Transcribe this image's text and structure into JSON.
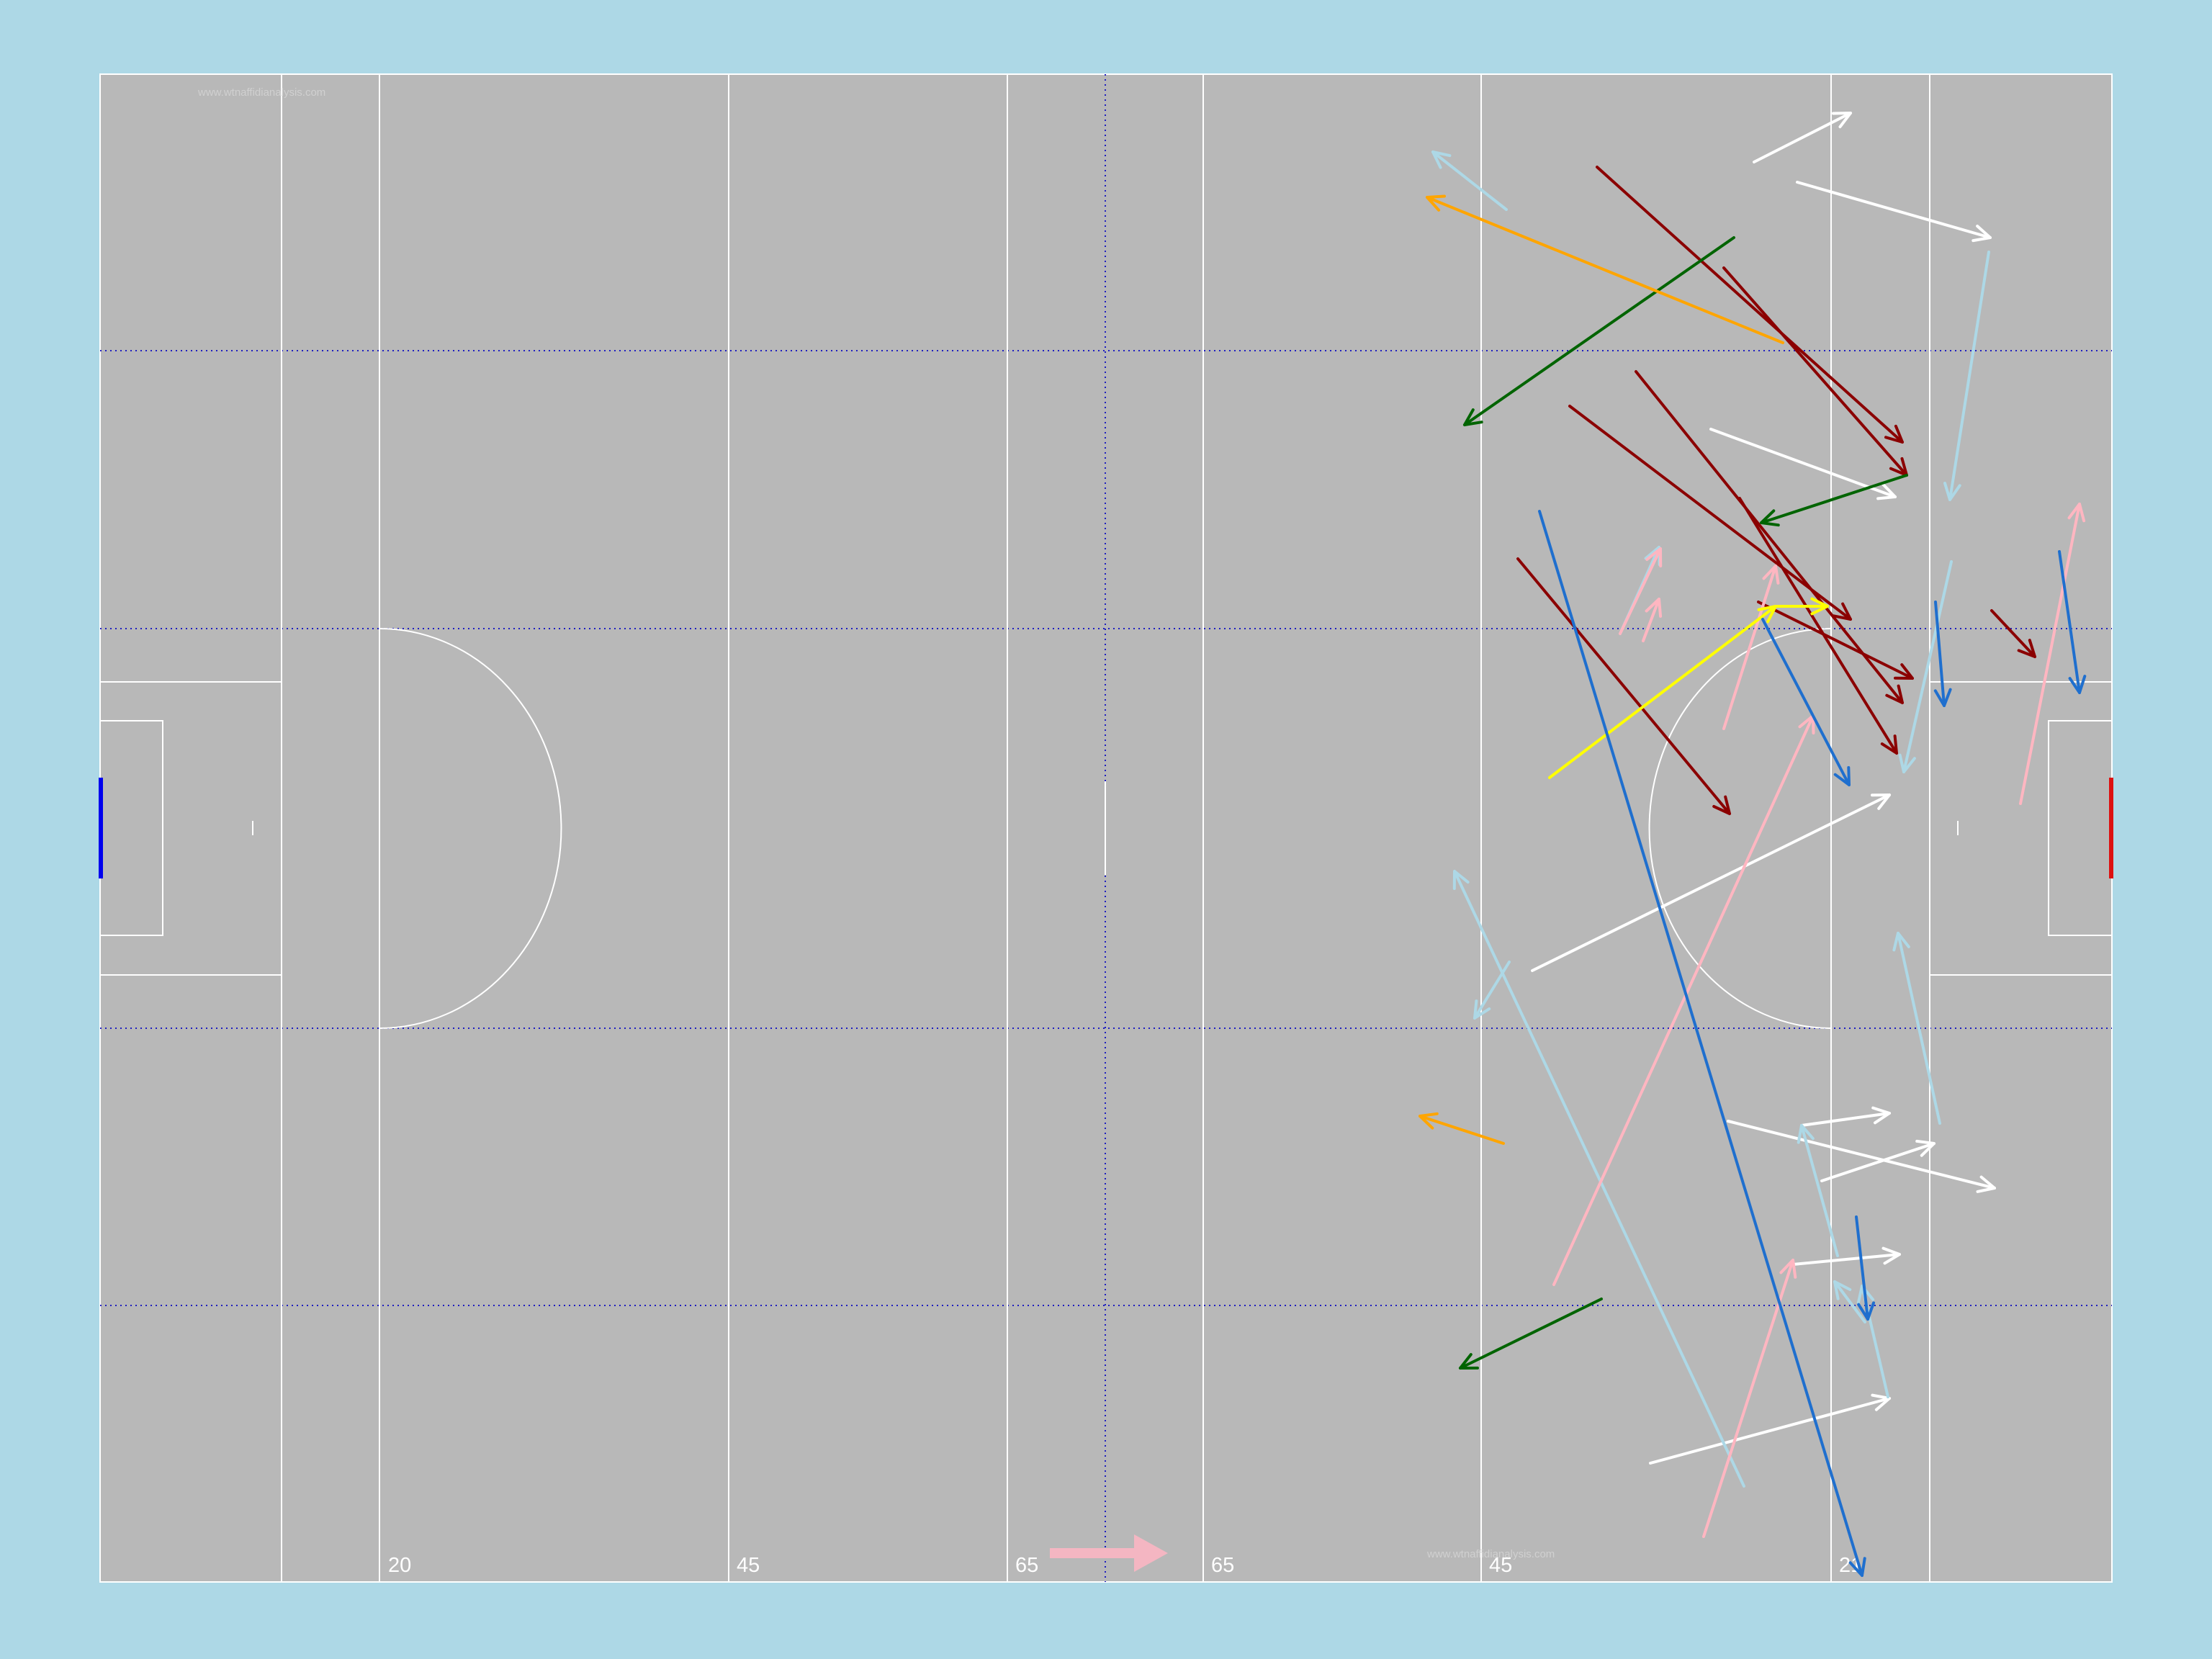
{
  "watermark": "www.wtnaffidianalysis.com",
  "pitch": {
    "background": "#add8e6",
    "surface": "#b8b8b8",
    "line_color": "#ffffff",
    "zone_line_color": "#1f1fbf",
    "left_goal_color": "#0000ee",
    "right_goal_color": "#dd1111",
    "attack_direction_arrow_color": "#f4b6c2"
  },
  "distance_labels": [
    "20",
    "45",
    "65",
    "65",
    "45",
    "21"
  ],
  "chart_data": {
    "type": "pass-map",
    "x_axis": "pitch length (distance markings 20, 45, 65, 65, 45, 21)",
    "y_axis": "pitch width",
    "colors": {
      "white": "#ffffff",
      "lightblue": "#add8e6",
      "darkred": "#8b0000",
      "darkgreen": "#006400",
      "orange": "#ffa500",
      "pink": "#ffb6c1",
      "yellow": "#ffff00",
      "blue": "#1f6fce"
    },
    "arrows": [
      {
        "color": "white",
        "from": [
          2436,
          225
        ],
        "to": [
          2570,
          157
        ]
      },
      {
        "color": "white",
        "from": [
          2496,
          253
        ],
        "to": [
          2764,
          330
        ]
      },
      {
        "color": "white",
        "from": [
          2376,
          596
        ],
        "to": [
          2632,
          690
        ]
      },
      {
        "color": "white",
        "from": [
          2128,
          1348
        ],
        "to": [
          2624,
          1104
        ]
      },
      {
        "color": "white",
        "from": [
          2400,
          1557
        ],
        "to": [
          2770,
          1650
        ]
      },
      {
        "color": "white",
        "from": [
          2502,
          1563
        ],
        "to": [
          2624,
          1546
        ]
      },
      {
        "color": "white",
        "from": [
          2530,
          1640
        ],
        "to": [
          2686,
          1588
        ]
      },
      {
        "color": "white",
        "from": [
          2490,
          1756
        ],
        "to": [
          2638,
          1742
        ]
      },
      {
        "color": "white",
        "from": [
          2292,
          2032
        ],
        "to": [
          2624,
          1942
        ]
      },
      {
        "color": "lightblue",
        "from": [
          2092,
          291
        ],
        "to": [
          1990,
          211
        ]
      },
      {
        "color": "lightblue",
        "from": [
          2762,
          350
        ],
        "to": [
          2708,
          694
        ]
      },
      {
        "color": "lightblue",
        "from": [
          2710,
          780
        ],
        "to": [
          2644,
          1072
        ]
      },
      {
        "color": "lightblue",
        "from": [
          2250,
          880
        ],
        "to": [
          2304,
          760
        ]
      },
      {
        "color": "lightblue",
        "from": [
          2694,
          1560
        ],
        "to": [
          2636,
          1296
        ]
      },
      {
        "color": "lightblue",
        "from": [
          2096,
          1336
        ],
        "to": [
          2048,
          1414
        ]
      },
      {
        "color": "lightblue",
        "from": [
          2422,
          2064
        ],
        "to": [
          2020,
          1210
        ]
      },
      {
        "color": "lightblue",
        "from": [
          2552,
          1744
        ],
        "to": [
          2502,
          1563
        ]
      },
      {
        "color": "lightblue",
        "from": [
          2622,
          1940
        ],
        "to": [
          2586,
          1786
        ]
      },
      {
        "color": "lightblue",
        "from": [
          2590,
          1836
        ],
        "to": [
          2548,
          1780
        ]
      },
      {
        "color": "darkred",
        "from": [
          2218,
          232
        ],
        "to": [
          2642,
          614
        ]
      },
      {
        "color": "darkred",
        "from": [
          2394,
          372
        ],
        "to": [
          2648,
          660
        ]
      },
      {
        "color": "darkred",
        "from": [
          2272,
          516
        ],
        "to": [
          2642,
          976
        ]
      },
      {
        "color": "darkred",
        "from": [
          2180,
          564
        ],
        "to": [
          2570,
          860
        ]
      },
      {
        "color": "darkred",
        "from": [
          2442,
          836
        ],
        "to": [
          2656,
          942
        ]
      },
      {
        "color": "darkred",
        "from": [
          2108,
          776
        ],
        "to": [
          2402,
          1130
        ]
      },
      {
        "color": "darkred",
        "from": [
          2416,
          692
        ],
        "to": [
          2634,
          1046
        ]
      },
      {
        "color": "darkred",
        "from": [
          2766,
          848
        ],
        "to": [
          2826,
          912
        ]
      },
      {
        "color": "darkgreen",
        "from": [
          2408,
          330
        ],
        "to": [
          2034,
          590
        ]
      },
      {
        "color": "darkgreen",
        "from": [
          2648,
          660
        ],
        "to": [
          2446,
          726
        ]
      },
      {
        "color": "darkgreen",
        "from": [
          2224,
          1804
        ],
        "to": [
          2028,
          1900
        ]
      },
      {
        "color": "orange",
        "from": [
          2476,
          476
        ],
        "to": [
          1982,
          274
        ]
      },
      {
        "color": "orange",
        "from": [
          2088,
          1588
        ],
        "to": [
          1972,
          1550
        ]
      },
      {
        "color": "pink",
        "from": [
          2394,
          1012
        ],
        "to": [
          2466,
          786
        ]
      },
      {
        "color": "pink",
        "from": [
          2250,
          880
        ],
        "to": [
          2306,
          762
        ]
      },
      {
        "color": "pink",
        "from": [
          2282,
          890
        ],
        "to": [
          2304,
          832
        ]
      },
      {
        "color": "pink",
        "from": [
          2158,
          1784
        ],
        "to": [
          2518,
          994
        ]
      },
      {
        "color": "pink",
        "from": [
          2806,
          1116
        ],
        "to": [
          2888,
          700
        ]
      },
      {
        "color": "pink",
        "from": [
          2366,
          2134
        ],
        "to": [
          2490,
          1750
        ]
      },
      {
        "color": "yellow",
        "from": [
          2152,
          1080
        ],
        "to": [
          2466,
          842
        ]
      },
      {
        "color": "yellow",
        "from": [
          2466,
          842
        ],
        "to": [
          2538,
          842
        ]
      },
      {
        "color": "blue",
        "from": [
          2138,
          710
        ],
        "to": [
          2586,
          2188
        ]
      },
      {
        "color": "blue",
        "from": [
          2448,
          860
        ],
        "to": [
          2568,
          1090
        ]
      },
      {
        "color": "blue",
        "from": [
          2688,
          836
        ],
        "to": [
          2700,
          980
        ]
      },
      {
        "color": "blue",
        "from": [
          2860,
          766
        ],
        "to": [
          2888,
          962
        ]
      },
      {
        "color": "blue",
        "from": [
          2578,
          1690
        ],
        "to": [
          2594,
          1832
        ]
      }
    ]
  }
}
